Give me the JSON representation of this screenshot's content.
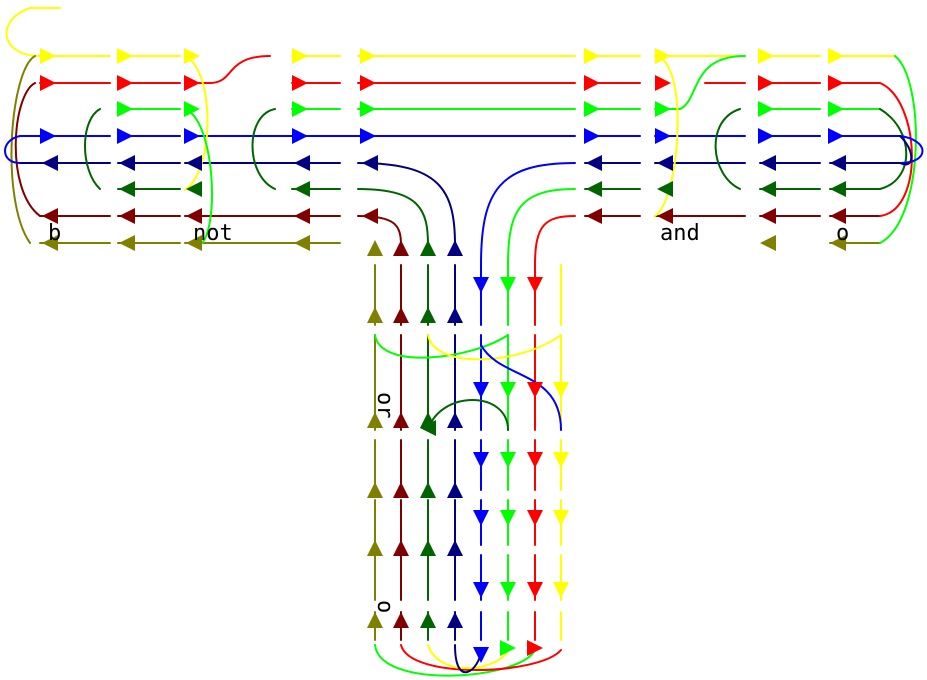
{
  "colors": {
    "yellow": "#ffff00",
    "red": "#ff0000",
    "green": "#00ff00",
    "blue": "#0000ff",
    "navy": "#000080",
    "darkgreen": "#006400",
    "maroon": "#800000",
    "olive": "#808000"
  },
  "labels": {
    "b": "b",
    "not": "not",
    "and": "and",
    "o_top": "o",
    "or": "or",
    "o_bottom": "o"
  },
  "horizontal_band": {
    "rows": [
      {
        "color": "yellow",
        "direction": "right"
      },
      {
        "color": "red",
        "direction": "right"
      },
      {
        "color": "green",
        "direction": "right"
      },
      {
        "color": "blue",
        "direction": "right"
      },
      {
        "color": "navy",
        "direction": "left"
      },
      {
        "color": "darkgreen",
        "direction": "left"
      },
      {
        "color": "maroon",
        "direction": "left"
      },
      {
        "color": "olive",
        "direction": "left"
      }
    ]
  },
  "vertical_band": {
    "columns": [
      {
        "color": "olive",
        "direction": "up"
      },
      {
        "color": "maroon",
        "direction": "up"
      },
      {
        "color": "darkgreen",
        "direction": "up"
      },
      {
        "color": "navy",
        "direction": "up"
      },
      {
        "color": "blue",
        "direction": "down"
      },
      {
        "color": "green",
        "direction": "down"
      },
      {
        "color": "red",
        "direction": "down"
      },
      {
        "color": "yellow",
        "direction": "down"
      }
    ]
  }
}
